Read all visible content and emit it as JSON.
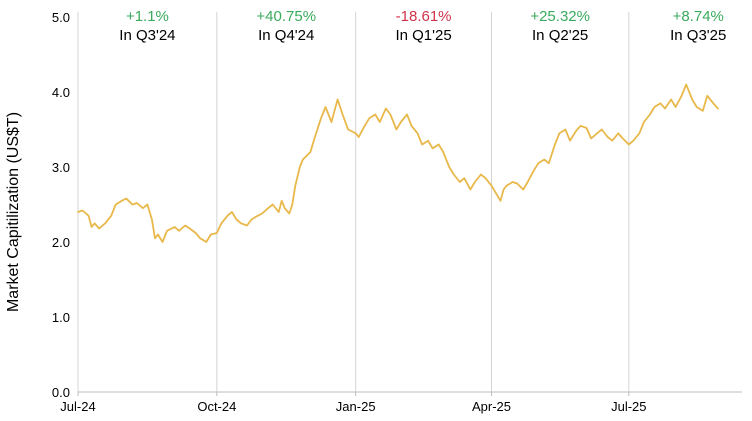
{
  "chart_data": {
    "type": "line",
    "title": "",
    "xlabel": "",
    "ylabel": "Market Capitilization (US$T)",
    "ylim": [
      0,
      5
    ],
    "y_ticks": [
      "0.0",
      "1.0",
      "2.0",
      "3.0",
      "4.0",
      "5.0"
    ],
    "x_ticks": [
      "Jul-24",
      "Oct-24",
      "Jan-25",
      "Apr-25",
      "Jul-25"
    ],
    "x_range": [
      "2024-07-01",
      "2025-09-14"
    ],
    "grid": "vertical lines at quarter starts",
    "line_color": "#e8b84a",
    "quarter_annotations": [
      {
        "change": "+1.1%",
        "label": "In Q3'24",
        "color": "#3aaa5c"
      },
      {
        "change": "+40.75%",
        "label": "In Q4'24",
        "color": "#3aaa5c"
      },
      {
        "change": "-18.61%",
        "label": "In Q1'25",
        "color": "#d0334a"
      },
      {
        "change": "+25.32%",
        "label": "In Q2'25",
        "color": "#3aaa5c"
      },
      {
        "change": "+8.74%",
        "label": "In Q3'25",
        "color": "#3aaa5c"
      }
    ],
    "series": [
      {
        "points": [
          [
            "2024-07-01",
            2.4
          ],
          [
            "2024-07-04",
            2.42
          ],
          [
            "2024-07-08",
            2.35
          ],
          [
            "2024-07-10",
            2.2
          ],
          [
            "2024-07-12",
            2.25
          ],
          [
            "2024-07-15",
            2.18
          ],
          [
            "2024-07-19",
            2.25
          ],
          [
            "2024-07-23",
            2.35
          ],
          [
            "2024-07-26",
            2.5
          ],
          [
            "2024-07-30",
            2.55
          ],
          [
            "2024-08-02",
            2.58
          ],
          [
            "2024-08-06",
            2.5
          ],
          [
            "2024-08-09",
            2.52
          ],
          [
            "2024-08-13",
            2.45
          ],
          [
            "2024-08-16",
            2.5
          ],
          [
            "2024-08-19",
            2.3
          ],
          [
            "2024-08-21",
            2.05
          ],
          [
            "2024-08-23",
            2.1
          ],
          [
            "2024-08-26",
            2.0
          ],
          [
            "2024-08-29",
            2.15
          ],
          [
            "2024-09-03",
            2.2
          ],
          [
            "2024-09-06",
            2.15
          ],
          [
            "2024-09-10",
            2.22
          ],
          [
            "2024-09-13",
            2.18
          ],
          [
            "2024-09-17",
            2.12
          ],
          [
            "2024-09-20",
            2.05
          ],
          [
            "2024-09-24",
            2.0
          ],
          [
            "2024-09-27",
            2.1
          ],
          [
            "2024-10-01",
            2.12
          ],
          [
            "2024-10-04",
            2.25
          ],
          [
            "2024-10-08",
            2.35
          ],
          [
            "2024-10-11",
            2.4
          ],
          [
            "2024-10-14",
            2.3
          ],
          [
            "2024-10-17",
            2.25
          ],
          [
            "2024-10-21",
            2.22
          ],
          [
            "2024-10-24",
            2.3
          ],
          [
            "2024-10-28",
            2.35
          ],
          [
            "2024-10-31",
            2.38
          ],
          [
            "2024-11-04",
            2.45
          ],
          [
            "2024-11-07",
            2.5
          ],
          [
            "2024-11-11",
            2.4
          ],
          [
            "2024-11-13",
            2.55
          ],
          [
            "2024-11-15",
            2.45
          ],
          [
            "2024-11-18",
            2.38
          ],
          [
            "2024-11-20",
            2.5
          ],
          [
            "2024-11-22",
            2.75
          ],
          [
            "2024-11-25",
            3.0
          ],
          [
            "2024-11-27",
            3.1
          ],
          [
            "2024-12-02",
            3.2
          ],
          [
            "2024-12-05",
            3.4
          ],
          [
            "2024-12-09",
            3.65
          ],
          [
            "2024-12-12",
            3.8
          ],
          [
            "2024-12-16",
            3.6
          ],
          [
            "2024-12-18",
            3.75
          ],
          [
            "2024-12-20",
            3.9
          ],
          [
            "2024-12-23",
            3.72
          ],
          [
            "2024-12-27",
            3.5
          ],
          [
            "2025-01-01",
            3.45
          ],
          [
            "2025-01-03",
            3.4
          ],
          [
            "2025-01-07",
            3.55
          ],
          [
            "2025-01-10",
            3.65
          ],
          [
            "2025-01-14",
            3.7
          ],
          [
            "2025-01-17",
            3.6
          ],
          [
            "2025-01-21",
            3.78
          ],
          [
            "2025-01-24",
            3.7
          ],
          [
            "2025-01-28",
            3.5
          ],
          [
            "2025-01-31",
            3.6
          ],
          [
            "2025-02-04",
            3.7
          ],
          [
            "2025-02-07",
            3.55
          ],
          [
            "2025-02-11",
            3.45
          ],
          [
            "2025-02-14",
            3.3
          ],
          [
            "2025-02-18",
            3.35
          ],
          [
            "2025-02-21",
            3.25
          ],
          [
            "2025-02-25",
            3.3
          ],
          [
            "2025-02-28",
            3.2
          ],
          [
            "2025-03-04",
            3.0
          ],
          [
            "2025-03-07",
            2.9
          ],
          [
            "2025-03-11",
            2.8
          ],
          [
            "2025-03-14",
            2.85
          ],
          [
            "2025-03-18",
            2.7
          ],
          [
            "2025-03-21",
            2.8
          ],
          [
            "2025-03-25",
            2.9
          ],
          [
            "2025-03-28",
            2.85
          ],
          [
            "2025-04-01",
            2.75
          ],
          [
            "2025-04-04",
            2.65
          ],
          [
            "2025-04-07",
            2.55
          ],
          [
            "2025-04-09",
            2.7
          ],
          [
            "2025-04-11",
            2.75
          ],
          [
            "2025-04-15",
            2.8
          ],
          [
            "2025-04-18",
            2.78
          ],
          [
            "2025-04-22",
            2.7
          ],
          [
            "2025-04-25",
            2.8
          ],
          [
            "2025-04-29",
            2.95
          ],
          [
            "2025-05-02",
            3.05
          ],
          [
            "2025-05-06",
            3.1
          ],
          [
            "2025-05-09",
            3.05
          ],
          [
            "2025-05-13",
            3.3
          ],
          [
            "2025-05-16",
            3.45
          ],
          [
            "2025-05-20",
            3.5
          ],
          [
            "2025-05-23",
            3.35
          ],
          [
            "2025-05-27",
            3.48
          ],
          [
            "2025-05-30",
            3.55
          ],
          [
            "2025-06-03",
            3.52
          ],
          [
            "2025-06-06",
            3.38
          ],
          [
            "2025-06-10",
            3.45
          ],
          [
            "2025-06-13",
            3.5
          ],
          [
            "2025-06-17",
            3.4
          ],
          [
            "2025-06-20",
            3.35
          ],
          [
            "2025-06-24",
            3.45
          ],
          [
            "2025-06-27",
            3.38
          ],
          [
            "2025-07-01",
            3.3
          ],
          [
            "2025-07-04",
            3.35
          ],
          [
            "2025-07-08",
            3.45
          ],
          [
            "2025-07-11",
            3.6
          ],
          [
            "2025-07-15",
            3.7
          ],
          [
            "2025-07-18",
            3.8
          ],
          [
            "2025-07-22",
            3.85
          ],
          [
            "2025-07-25",
            3.78
          ],
          [
            "2025-07-29",
            3.9
          ],
          [
            "2025-08-01",
            3.8
          ],
          [
            "2025-08-05",
            3.95
          ],
          [
            "2025-08-08",
            4.1
          ],
          [
            "2025-08-12",
            3.9
          ],
          [
            "2025-08-15",
            3.8
          ],
          [
            "2025-08-19",
            3.75
          ],
          [
            "2025-08-22",
            3.95
          ],
          [
            "2025-08-26",
            3.85
          ],
          [
            "2025-08-29",
            3.78
          ]
        ]
      }
    ]
  }
}
